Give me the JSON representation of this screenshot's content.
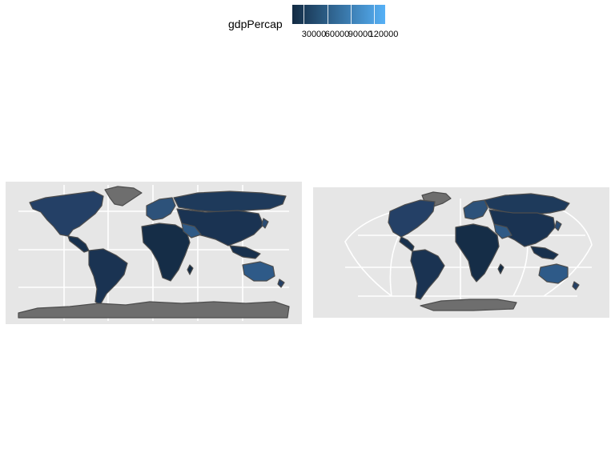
{
  "legend": {
    "title": "gdpPercap",
    "ticks": [
      "30000",
      "60000",
      "90000",
      "120000"
    ],
    "gradient": {
      "low": "#132B43",
      "high": "#56B1F7"
    }
  },
  "colors": {
    "panel_background": "#E6E6E6",
    "grid": "#FFFFFF",
    "country_border": "#4D4D4D",
    "missing_fill": "#6E6E6E"
  },
  "panels": [
    {
      "id": "left",
      "projection": "equirectangular"
    },
    {
      "id": "right",
      "projection": "pseudocylindrical"
    }
  ]
}
